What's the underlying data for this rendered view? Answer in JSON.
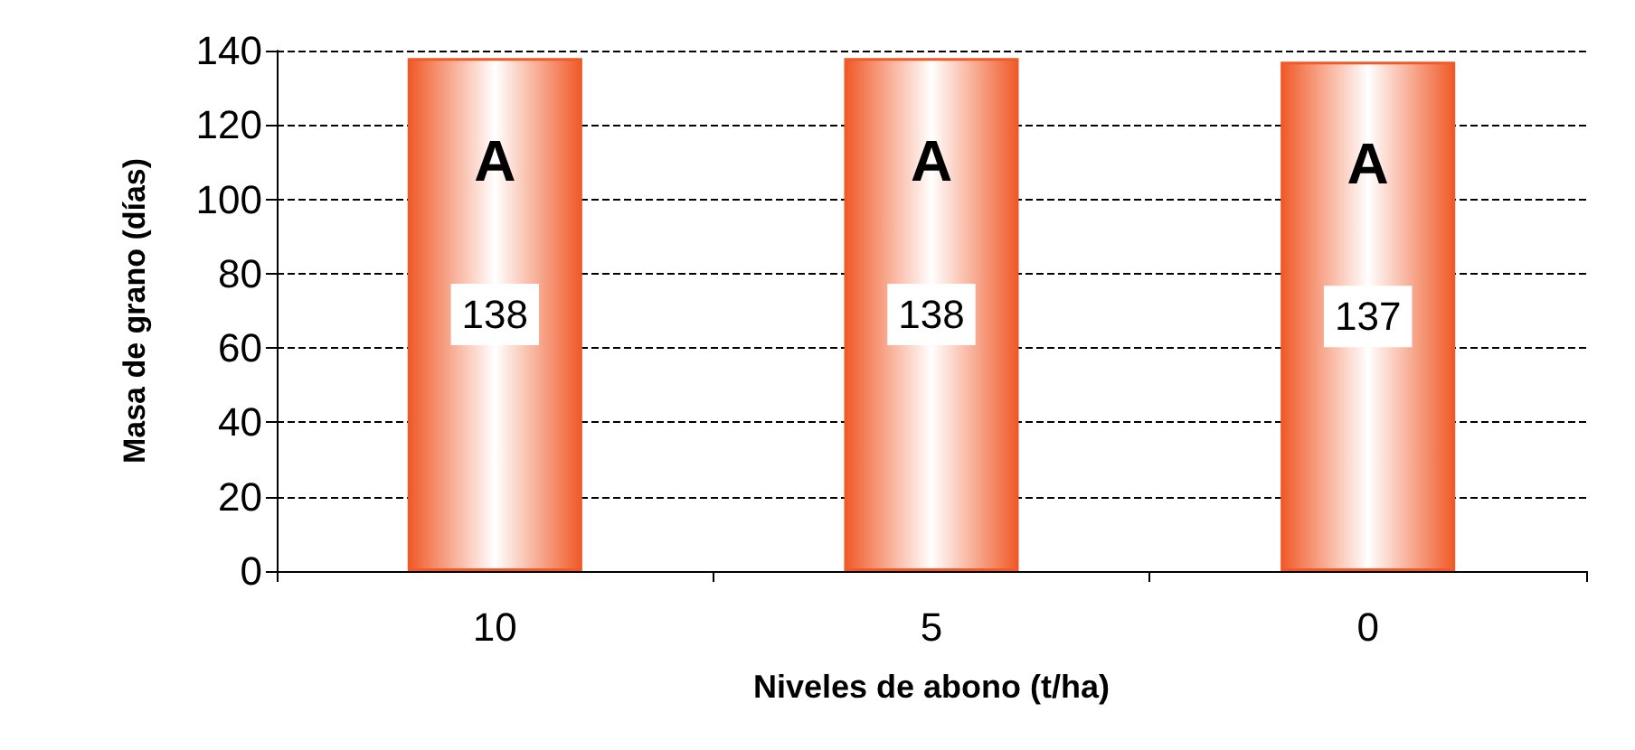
{
  "chart_data": {
    "type": "bar",
    "xlabel": "Niveles de abono (t/ha)",
    "ylabel": "Masa de grano (días)",
    "categories": [
      "10",
      "5",
      "0"
    ],
    "values": [
      138,
      138,
      137
    ],
    "color": "#f05a28",
    "ylim": [
      0,
      140
    ],
    "yticks": [
      0,
      20,
      40,
      60,
      80,
      100,
      120,
      140
    ],
    "grid": "y",
    "data_labels": true,
    "annotations": [
      "A",
      "A",
      "A"
    ]
  }
}
